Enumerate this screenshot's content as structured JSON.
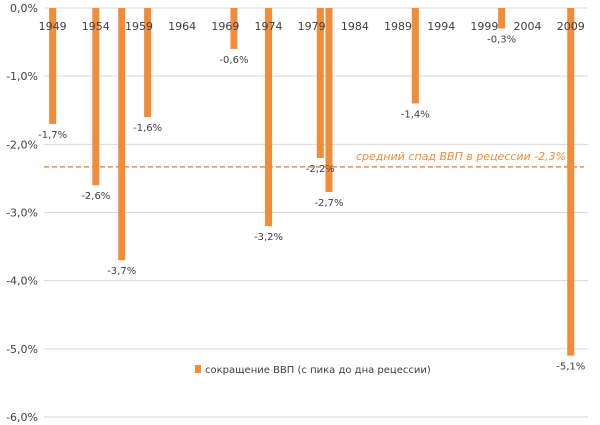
{
  "chart_data": {
    "type": "bar",
    "x": [
      1949,
      1954,
      1957,
      1960,
      1970,
      1974,
      1980,
      1981,
      1991,
      2001,
      2009
    ],
    "values": [
      -1.7,
      -2.6,
      -3.7,
      -1.6,
      -0.6,
      -3.2,
      -2.2,
      -2.7,
      -1.4,
      -0.3,
      -5.1
    ],
    "data_labels": [
      "-1,7%",
      "-2,6%",
      "-3,7%",
      "-1,6%",
      "-0,6%",
      "-3,2%",
      "-2,2%",
      "-2,7%",
      "-1,4%",
      "-0,3%",
      "-5,1%"
    ],
    "x_ticks": [
      1949,
      1954,
      1959,
      1964,
      1969,
      1974,
      1979,
      1984,
      1989,
      1994,
      1999,
      2004,
      2009
    ],
    "x_tick_labels": [
      "1949",
      "1954",
      "1959",
      "1964",
      "1969",
      "1974",
      "1979",
      "1984",
      "1989",
      "1994",
      "1999",
      "2004",
      "2009"
    ],
    "y_ticks": [
      0,
      -1,
      -2,
      -3,
      -4,
      -5,
      -6
    ],
    "y_tick_labels": [
      "0,0%",
      "-1,0%",
      "-2,0%",
      "-3,0%",
      "-4,0%",
      "-5,0%",
      "-6,0%"
    ],
    "ylim": [
      -6,
      0
    ],
    "xlim": [
      1948,
      2011
    ],
    "average": {
      "value": -2.33,
      "label": "средний спад ВВП в рецессии -2,3%"
    },
    "series": [
      {
        "name": "сокращение ВВП (с пика до дна рецессии)",
        "values": [
          -1.7,
          -2.6,
          -3.7,
          -1.6,
          -0.6,
          -3.2,
          -2.2,
          -2.7,
          -1.4,
          -0.3,
          -5.1
        ]
      }
    ],
    "legend_position": "bottom-center",
    "grid": {
      "horizontal": true,
      "vertical": false
    },
    "colors": {
      "bar": "#F28C38",
      "average_line": "#F28C38",
      "average_text": "#F28C38",
      "grid": "#D9D9D9"
    }
  }
}
